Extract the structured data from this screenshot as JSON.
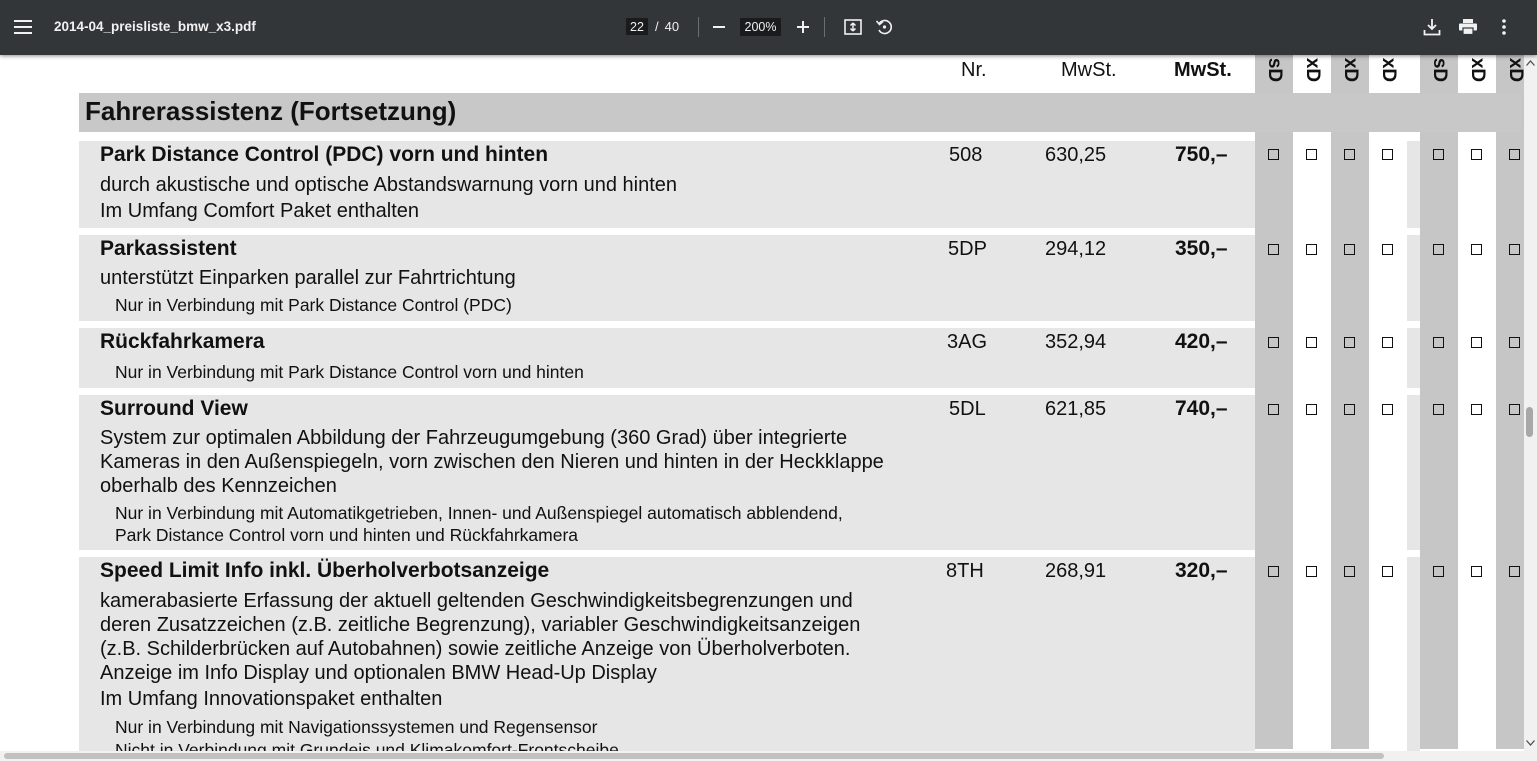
{
  "toolbar": {
    "filename": "2014-04_preisliste_bmw_x3.pdf",
    "page_current": "22",
    "page_sep": "/",
    "page_total": "40",
    "zoom": "200%",
    "icons": [
      "menu-icon",
      "zoom-out-icon",
      "zoom-in-icon",
      "fit-page-icon",
      "rotate-icon",
      "download-icon",
      "print-icon",
      "more-icon"
    ]
  },
  "header": {
    "nr": "Nr.",
    "net": "MwSt.",
    "gross": "MwSt.",
    "variants": [
      "sD",
      "xD",
      "xD",
      "xD",
      "sD",
      "xD",
      "xD"
    ]
  },
  "section": {
    "title": "Fahrerassistenz (Fortsetzung)"
  },
  "rows": [
    {
      "title": "Park Distance Control (PDC) vorn und hinten",
      "nr": "508",
      "net": "630,25",
      "gross": "750,–",
      "desc": [
        "durch akustische und optische Abstandswarnung vorn und hinten",
        "Im Umfang Comfort Paket enthalten"
      ],
      "notes": []
    },
    {
      "title": "Parkassistent",
      "nr": "5DP",
      "net": "294,12",
      "gross": "350,–",
      "desc": [
        "unterstützt Einparken parallel zur Fahrtrichtung"
      ],
      "notes": [
        "Nur in Verbindung mit Park Distance Control (PDC)"
      ]
    },
    {
      "title": "Rückfahrkamera",
      "nr": "3AG",
      "net": "352,94",
      "gross": "420,–",
      "desc": [],
      "notes": [
        "Nur in Verbindung mit Park Distance Control vorn und hinten"
      ]
    },
    {
      "title": "Surround View",
      "nr": "5DL",
      "net": "621,85",
      "gross": "740,–",
      "desc": [
        "System zur optimalen Abbildung der Fahrzeugumgebung (360 Grad) über integrierte",
        "Kameras in den Außenspiegeln, vorn zwischen den Nieren und hinten in der Heckklappe",
        "oberhalb des Kennzeichen"
      ],
      "notes": [
        "Nur in Verbindung mit Automatikgetrieben, Innen- und Außenspiegel automatisch abblendend,",
        "Park Distance Control vorn und hinten und Rückfahrkamera"
      ]
    },
    {
      "title": "Speed Limit Info inkl. Überholverbotsanzeige",
      "nr": "8TH",
      "net": "268,91",
      "gross": "320,–",
      "desc": [
        "kamerabasierte Erfassung der aktuell geltenden Geschwindigkeitsbegrenzungen und",
        "deren Zusatzzeichen (z.B. zeitliche Begrenzung), variabler Geschwindigkeitsanzeigen",
        "(z.B. Schilderbrücken auf Autobahnen) sowie zeitliche Anzeige von Überholverboten.",
        "Anzeige im Info Display und optionalen BMW Head-Up Display",
        "Im Umfang Innovationspaket enthalten"
      ],
      "notes": [
        "Nur in Verbindung mit Navigationssystemen und Regensensor",
        "Nicht in Verbindung mit Grundeis und Klimakomfort-Frontscheibe"
      ]
    }
  ],
  "colors": {
    "toolbar": "#323639",
    "row": "#e6e6e6",
    "column": "#c6c6c6",
    "section": "#c8c8c8"
  }
}
